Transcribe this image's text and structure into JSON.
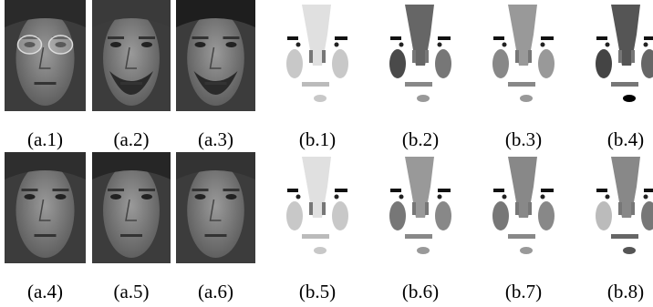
{
  "figure": {
    "rows": [
      {
        "labels": [
          "(a.1)",
          "(a.2)",
          "(a.3)",
          "(b.1)",
          "(b.2)",
          "(b.3)",
          "(b.4)"
        ]
      },
      {
        "labels": [
          "(a.4)",
          "(a.5)",
          "(a.6)",
          "(b.5)",
          "(b.6)",
          "(b.7)",
          "(b.8)"
        ]
      }
    ]
  }
}
